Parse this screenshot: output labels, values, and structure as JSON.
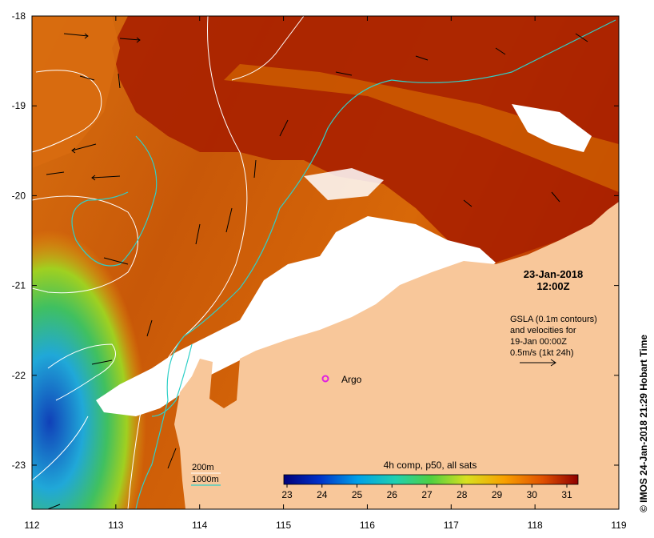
{
  "map": {
    "lon_ticks": [
      "112",
      "113",
      "114",
      "115",
      "116",
      "117",
      "118",
      "119"
    ],
    "lat_ticks": [
      "-18",
      "-19",
      "-20",
      "-21",
      "-22",
      "-23"
    ],
    "date": "23-Jan-2018",
    "time": "12:00Z",
    "gsla_note": [
      "GSLA (0.1m contours)",
      "and velocities for",
      "19-Jan 00:00Z",
      "0.5m/s (1kt 24h)"
    ],
    "argo_label": "Argo",
    "legend": {
      "contour_200": "200m",
      "contour_1000": "1000m"
    },
    "colorbar": {
      "title": "4h comp, p50, all sats",
      "ticks": [
        "23",
        "24",
        "25",
        "26",
        "27",
        "28",
        "29",
        "30",
        "31"
      ]
    },
    "credit": "© IMOS 24-Jan-2018 21:29 Hobart Time",
    "colors": {
      "land": "#f8c79a",
      "hot": "#a01800",
      "warm": "#d05000",
      "mid": "#e88a10",
      "cool_green": "#40c040",
      "cold_cyan": "#20b0e0",
      "cold_blue": "#1050c0",
      "contour_cyan": "#30d0c8",
      "argo": "#e020e0"
    }
  }
}
